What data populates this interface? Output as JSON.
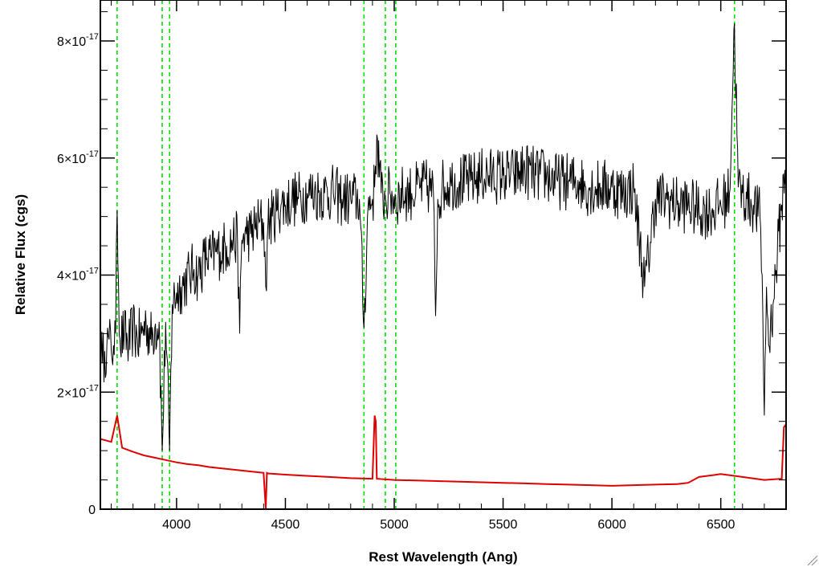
{
  "chart_data": {
    "type": "line",
    "title": "",
    "xlabel": "Rest Wavelength (Ang)",
    "ylabel": "Relative Flux (cgs)",
    "xlim": [
      3650,
      6800
    ],
    "ylim": [
      0,
      8.7e-17
    ],
    "x_ticks": [
      {
        "value": 4000,
        "label": "4000"
      },
      {
        "value": 4500,
        "label": "4500"
      },
      {
        "value": 5000,
        "label": "5000"
      },
      {
        "value": 5500,
        "label": "5500"
      },
      {
        "value": 6000,
        "label": "6000"
      },
      {
        "value": 6500,
        "label": "6500"
      }
    ],
    "y_ticks": [
      {
        "value": 0,
        "mantissa": "0",
        "exponent": ""
      },
      {
        "value": 2e-17,
        "mantissa": "2×10",
        "exponent": "-17"
      },
      {
        "value": 4e-17,
        "mantissa": "4×10",
        "exponent": "-17"
      },
      {
        "value": 6e-17,
        "mantissa": "6×10",
        "exponent": "-17"
      },
      {
        "value": 8e-17,
        "mantissa": "8×10",
        "exponent": "-17"
      }
    ],
    "reference_lines": {
      "color": "#00e000",
      "x": [
        3727,
        3934,
        3968,
        4861,
        4959,
        5007,
        6563
      ]
    },
    "series": [
      {
        "role": "spectrum",
        "color": "#000000",
        "x": [
          3650,
          3660,
          3670,
          3680,
          3690,
          3700,
          3710,
          3720,
          3727,
          3740,
          3760,
          3780,
          3800,
          3820,
          3840,
          3860,
          3880,
          3900,
          3920,
          3934,
          3950,
          3968,
          3980,
          4000,
          4020,
          4040,
          4060,
          4080,
          4100,
          4120,
          4140,
          4160,
          4180,
          4200,
          4230,
          4260,
          4280,
          4290,
          4300,
          4320,
          4340,
          4360,
          4380,
          4400,
          4410,
          4420,
          4440,
          4460,
          4480,
          4500,
          4530,
          4560,
          4600,
          4640,
          4680,
          4720,
          4760,
          4800,
          4840,
          4861,
          4880,
          4900,
          4910,
          4920,
          4940,
          4959,
          4980,
          5007,
          5040,
          5080,
          5120,
          5160,
          5180,
          5190,
          5200,
          5220,
          5260,
          5300,
          5350,
          5400,
          5450,
          5500,
          5550,
          5600,
          5650,
          5700,
          5750,
          5800,
          5850,
          5880,
          5900,
          5950,
          6000,
          6050,
          6100,
          6150,
          6200,
          6250,
          6300,
          6350,
          6400,
          6450,
          6500,
          6540,
          6563,
          6580,
          6600,
          6620,
          6650,
          6680,
          6690,
          6700,
          6710,
          6720,
          6740,
          6760,
          6780,
          6800
        ],
        "y": [
          3.1e-17,
          2.5e-17,
          2.7e-17,
          2.8e-17,
          2.9e-17,
          2.7e-17,
          2.8e-17,
          3e-17,
          5.1e-17,
          2.9e-17,
          3e-17,
          2.8e-17,
          3.1e-17,
          2.9e-17,
          3e-17,
          3.2e-17,
          2.9e-17,
          3.1e-17,
          3.2e-17,
          1e-17,
          3.2e-17,
          1e-17,
          3.5e-17,
          3.7e-17,
          3.8e-17,
          3.9e-17,
          4e-17,
          4.1e-17,
          4e-17,
          4.2e-17,
          4.3e-17,
          4.3e-17,
          4.4e-17,
          4.4e-17,
          4.5e-17,
          4.6e-17,
          4.6e-17,
          3e-17,
          4.6e-17,
          4.7e-17,
          4.7e-17,
          4.8e-17,
          4.9e-17,
          4.9e-17,
          3.8e-17,
          4.9e-17,
          5e-17,
          5.1e-17,
          5.2e-17,
          5.2e-17,
          5.3e-17,
          5.3e-17,
          5.4e-17,
          5.4e-17,
          5.4e-17,
          5.4e-17,
          5.3e-17,
          5.3e-17,
          5.3e-17,
          3.1e-17,
          5.2e-17,
          5.3e-17,
          5.5e-17,
          6.4e-17,
          5.4e-17,
          5.3e-17,
          5.4e-17,
          5.3e-17,
          5.4e-17,
          5.4e-17,
          5.5e-17,
          5.5e-17,
          5.4e-17,
          3.3e-17,
          5.3e-17,
          5.5e-17,
          5.6e-17,
          5.6e-17,
          5.6e-17,
          5.7e-17,
          5.7e-17,
          5.7e-17,
          5.7e-17,
          5.8e-17,
          5.7e-17,
          5.7e-17,
          5.6e-17,
          5.6e-17,
          5.6e-17,
          5.5e-17,
          5.5e-17,
          5.5e-17,
          5.5e-17,
          5.4e-17,
          5.5e-17,
          3.8e-17,
          5.3e-17,
          5.3e-17,
          5.2e-17,
          5.2e-17,
          5.1e-17,
          5.1e-17,
          5.2e-17,
          5.4e-17,
          8.3e-17,
          5.5e-17,
          5.4e-17,
          5.3e-17,
          5.2e-17,
          5e-17,
          4e-17,
          1.6e-17,
          3.8e-17,
          2.8e-17,
          3.5e-17,
          4.4e-17,
          5.2e-17,
          6e-17
        ]
      },
      {
        "role": "error",
        "color": "#e00000",
        "x": [
          3650,
          3700,
          3727,
          3750,
          3800,
          3850,
          3900,
          3950,
          4000,
          4050,
          4100,
          4150,
          4200,
          4300,
          4400,
          4410,
          4415,
          4420,
          4500,
          4600,
          4700,
          4800,
          4900,
          4910,
          4915,
          4920,
          5000,
          5100,
          5200,
          5300,
          5400,
          5500,
          5600,
          5700,
          5800,
          5900,
          6000,
          6100,
          6200,
          6300,
          6350,
          6400,
          6500,
          6600,
          6700,
          6780,
          6790,
          6800
        ],
        "y": [
          1.2e-17,
          1.15e-17,
          1.6e-17,
          1.05e-17,
          9.8e-18,
          9.2e-18,
          8.8e-18,
          8.4e-18,
          8e-18,
          7.7e-18,
          7.5e-18,
          7.2e-18,
          7e-18,
          6.6e-18,
          6.2e-18,
          -5e-18,
          6.2e-18,
          6.1e-18,
          5.9e-18,
          5.7e-18,
          5.5e-18,
          5.3e-18,
          5.2e-18,
          1.6e-17,
          1.5e-17,
          5.2e-18,
          5e-18,
          4.9e-18,
          4.8e-18,
          4.7e-18,
          4.6e-18,
          4.5e-18,
          4.4e-18,
          4.3e-18,
          4.2e-18,
          4.1e-18,
          4e-18,
          4.1e-18,
          4.2e-18,
          4.3e-18,
          4.5e-18,
          5.5e-18,
          6e-18,
          5.5e-18,
          5e-18,
          5.2e-18,
          1.4e-17,
          1.45e-17
        ]
      }
    ]
  }
}
